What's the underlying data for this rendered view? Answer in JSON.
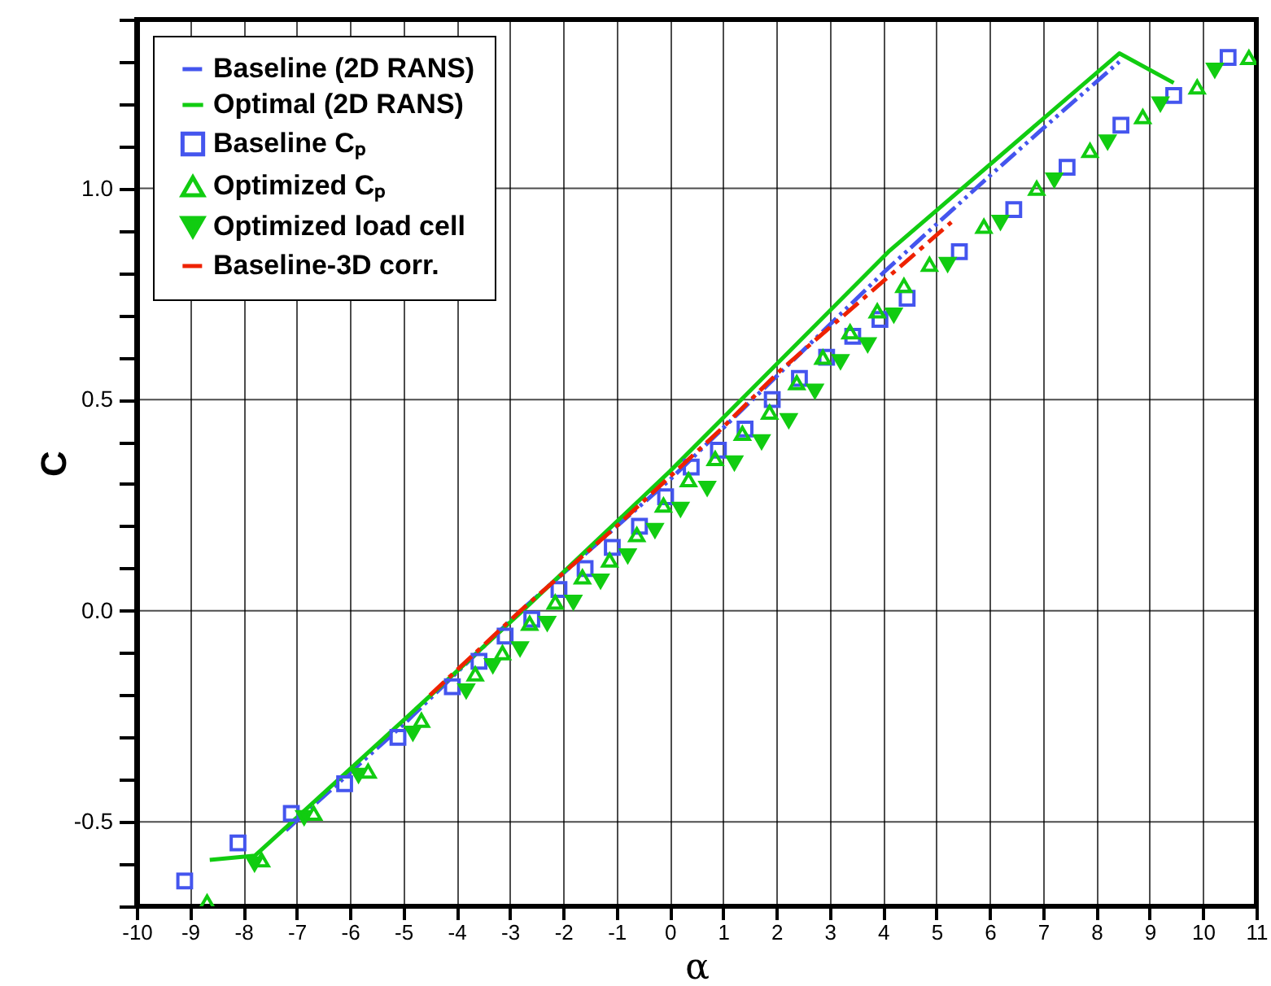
{
  "chart_data": {
    "type": "scatter",
    "xlabel": "α",
    "ylabel": "C",
    "xlim": [
      -10,
      11
    ],
    "ylim": [
      -0.7,
      1.4
    ],
    "xticks": [
      -10,
      -9,
      -8,
      -7,
      -6,
      -5,
      -4,
      -3,
      -2,
      -1,
      0,
      1,
      2,
      3,
      4,
      5,
      6,
      7,
      8,
      9,
      10,
      11
    ],
    "yticks": [
      {
        "value": -0.7,
        "label": null
      },
      {
        "value": -0.6,
        "label": null
      },
      -0.5,
      {
        "value": -0.4,
        "label": null
      },
      {
        "value": -0.3,
        "label": null
      },
      {
        "value": -0.2,
        "label": null
      },
      {
        "value": -0.1,
        "label": null
      },
      {
        "value": 0,
        "label": "0.0"
      },
      {
        "value": 0.1,
        "label": null
      },
      {
        "value": 0.2,
        "label": null
      },
      {
        "value": 0.3,
        "label": null
      },
      {
        "value": 0.4,
        "label": null
      },
      0.5,
      {
        "value": 0.6,
        "label": null
      },
      {
        "value": 0.7,
        "label": null
      },
      {
        "value": 0.8,
        "label": null
      },
      {
        "value": 0.9,
        "label": null
      },
      {
        "value": 1,
        "label": "1.0"
      },
      {
        "value": 1.1,
        "label": null
      },
      {
        "value": 1.2,
        "label": null
      },
      {
        "value": 1.3,
        "label": null
      },
      {
        "value": 1.4,
        "label": null
      }
    ],
    "grid": true,
    "legend": "top left",
    "series": [
      {
        "name": "Baseline (2D RANS)",
        "type": "line",
        "color": "#4455ee",
        "line_style": "dashdotdot",
        "x": [
          -7.2,
          -5,
          -2.8,
          0,
          4,
          6,
          7.16,
          8.43
        ],
        "values": [
          -0.52,
          -0.27,
          0,
          0.31,
          0.8,
          1.03,
          1.16,
          1.3
        ]
      },
      {
        "name": "Optimal (2D RANS)",
        "type": "line",
        "color": "#11cc11",
        "line_style": "solid",
        "x": [
          -8.63,
          -7.78,
          -5,
          -2.76,
          0,
          4.1,
          8.43,
          9.45
        ],
        "values": [
          -0.59,
          -0.58,
          -0.26,
          0,
          0.33,
          0.85,
          1.32,
          1.25
        ]
      },
      {
        "name": "Baseline Cₚ",
        "color": "#4455ee",
        "marker": "square",
        "x": [
          -9.1,
          -8.1,
          -7.1,
          -6.1,
          -5.1,
          -4.08,
          -3.58,
          -3.09,
          -2.59,
          -2.08,
          -1.59,
          -1.08,
          -0.57,
          -0.08,
          0.4,
          0.91,
          1.41,
          1.92,
          2.43,
          2.94,
          3.43,
          3.94,
          4.45,
          5.43,
          6.45,
          7.45,
          8.46,
          9.45,
          10.47
        ],
        "values": [
          -0.64,
          -0.55,
          -0.48,
          -0.41,
          -0.3,
          -0.18,
          -0.12,
          -0.06,
          -0.02,
          0.05,
          0.1,
          0.15,
          0.2,
          0.27,
          0.34,
          0.38,
          0.43,
          0.5,
          0.55,
          0.6,
          0.65,
          0.69,
          0.74,
          0.85,
          0.95,
          1.05,
          1.15,
          1.22,
          1.31
        ]
      },
      {
        "name": "Optimized Cₚ",
        "color": "#11cc11",
        "marker": "triangle",
        "x": [
          -8.68,
          -7.66,
          -6.68,
          -5.66,
          -4.66,
          -3.65,
          -3.14,
          -2.63,
          -2.15,
          -1.64,
          -1.13,
          -0.62,
          -0.12,
          0.35,
          0.85,
          1.36,
          1.87,
          2.38,
          2.87,
          3.38,
          3.89,
          4.39,
          4.87,
          5.89,
          6.88,
          7.88,
          8.87,
          9.89,
          10.86
        ],
        "values": [
          -0.69,
          -0.59,
          -0.48,
          -0.38,
          -0.26,
          -0.15,
          -0.1,
          -0.03,
          0.02,
          0.08,
          0.12,
          0.18,
          0.25,
          0.31,
          0.36,
          0.42,
          0.47,
          0.54,
          0.6,
          0.66,
          0.71,
          0.77,
          0.82,
          0.91,
          1,
          1.09,
          1.17,
          1.24,
          1.31
        ]
      },
      {
        "name": "Optimized load cell",
        "color": "#11cc11",
        "marker": "triangle-down",
        "x": [
          -7.79,
          -6.86,
          -5.84,
          -4.82,
          -3.82,
          -3.32,
          -2.81,
          -2.3,
          -1.81,
          -1.3,
          -0.79,
          -0.28,
          0.2,
          0.7,
          1.21,
          1.72,
          2.23,
          2.72,
          3.2,
          3.71,
          4.2,
          5.21,
          6.2,
          7.21,
          8.21,
          9.2,
          10.22
        ],
        "values": [
          -0.6,
          -0.49,
          -0.39,
          -0.29,
          -0.19,
          -0.13,
          -0.09,
          -0.03,
          0.02,
          0.07,
          0.13,
          0.19,
          0.24,
          0.29,
          0.35,
          0.4,
          0.45,
          0.52,
          0.59,
          0.63,
          0.7,
          0.82,
          0.92,
          1.02,
          1.11,
          1.2,
          1.28
        ]
      },
      {
        "name": "Baseline-3D corr.",
        "type": "line",
        "color": "#ee2200",
        "line_style": "dashdot",
        "x": [
          -4.5,
          -2.8,
          -1,
          0.96,
          2.08,
          5.28
        ],
        "values": [
          -0.2,
          0,
          0.2,
          0.43,
          0.57,
          0.92
        ]
      }
    ]
  }
}
